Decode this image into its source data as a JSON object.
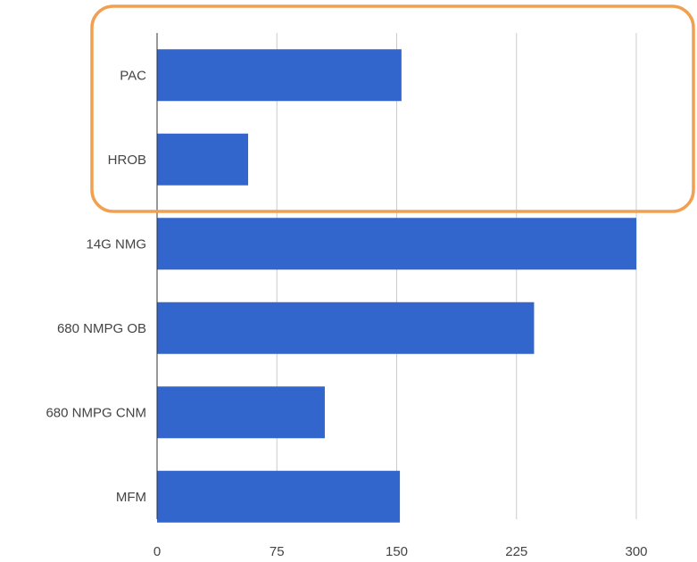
{
  "chart_data": {
    "type": "bar",
    "orientation": "horizontal",
    "categories": [
      "PAC",
      "HROB",
      "14G NMG",
      "680 NMPG OB",
      "680 NMPG CNM",
      "MFM"
    ],
    "values": [
      153,
      57,
      300,
      236,
      105,
      152
    ],
    "xlim": [
      0,
      300
    ],
    "xticks": [
      0,
      75,
      150,
      225,
      300
    ],
    "grid": true,
    "bar_color": "#3366cc",
    "gridline_color": "#cccccc",
    "axis_color": "#333333",
    "highlight": {
      "categories": [
        "PAC",
        "HROB"
      ],
      "stroke_color": "#f0a050"
    }
  }
}
